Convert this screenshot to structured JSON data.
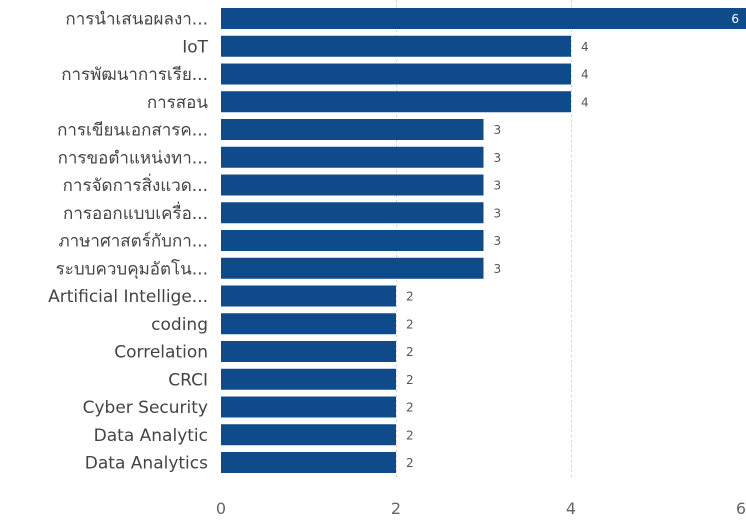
{
  "chart_data": {
    "type": "bar",
    "orientation": "horizontal",
    "categories": [
      "การนำเสนอผลงา...",
      "IoT",
      "การพัฒนาการเรีย...",
      "การสอน",
      "การเขียนเอกสารค...",
      "การขอตำแหน่งทา...",
      "การจัดการสิ่งแวด...",
      "การออกแบบเครื่อ...",
      "ภาษาศาสตร์กับกา...",
      "ระบบควบคุมอัตโน...",
      "Artificial Intellige...",
      "coding",
      "Correlation",
      "CRCI",
      "Cyber Security",
      "Data Analytic",
      "Data Analytics"
    ],
    "values": [
      6,
      4,
      4,
      4,
      3,
      3,
      3,
      3,
      3,
      3,
      2,
      2,
      2,
      2,
      2,
      2,
      2
    ],
    "x_ticks": [
      0,
      2,
      4,
      6
    ],
    "xlim": [
      0,
      6
    ],
    "grid": true,
    "bar_color": "#0f4b8a"
  }
}
